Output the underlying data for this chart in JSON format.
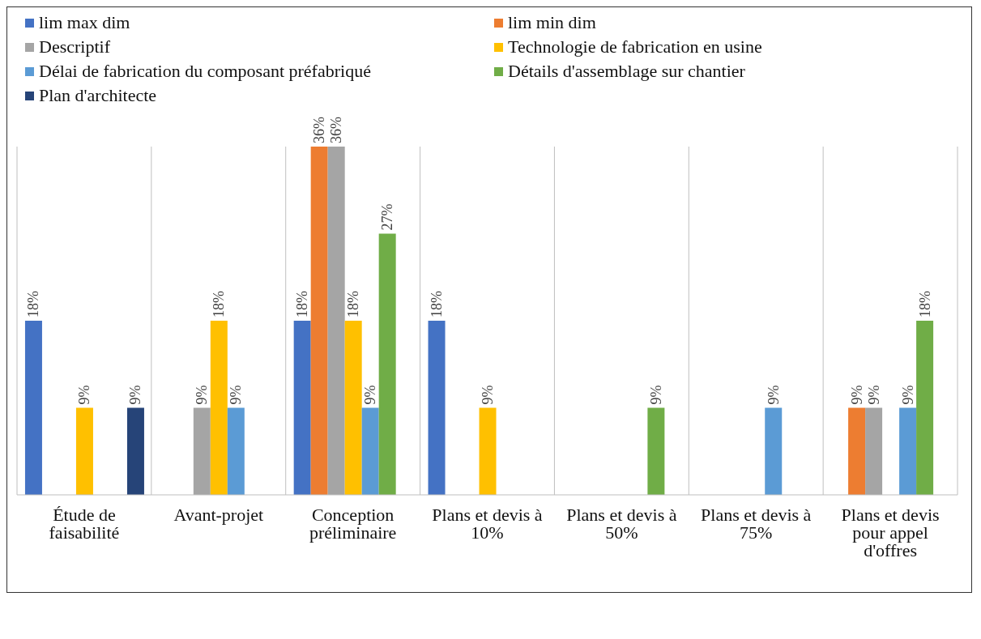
{
  "chart_data": {
    "type": "bar",
    "categories": [
      "Étude de faisabilité",
      "Avant-projet",
      "Conception préliminaire",
      "Plans et devis à 10%",
      "Plans et devis à 50%",
      "Plans et devis à 75%",
      "Plans et devis pour appel d'offres"
    ],
    "series": [
      {
        "name": "lim max dim",
        "color": "#4472c4",
        "values": [
          18,
          null,
          18,
          18,
          null,
          null,
          null
        ],
        "value_labels": [
          "18%",
          null,
          "18%",
          "18%",
          null,
          null,
          null
        ]
      },
      {
        "name": "lim min dim",
        "color": "#ed7d31",
        "values": [
          null,
          null,
          36,
          null,
          null,
          null,
          9
        ],
        "value_labels": [
          null,
          null,
          "36%",
          null,
          null,
          null,
          "9%"
        ]
      },
      {
        "name": "Descriptif",
        "color": "#a5a5a5",
        "values": [
          null,
          9,
          36,
          null,
          null,
          null,
          9
        ],
        "value_labels": [
          null,
          "9%",
          "36%",
          null,
          null,
          null,
          "9%"
        ]
      },
      {
        "name": "Technologie de fabrication en usine",
        "color": "#ffc000",
        "values": [
          9,
          18,
          18,
          9,
          null,
          null,
          null
        ],
        "value_labels": [
          "9%",
          "18%",
          "18%",
          "9%",
          null,
          null,
          null
        ]
      },
      {
        "name": "Délai de fabrication du composant préfabriqué",
        "color": "#5b9bd5",
        "values": [
          null,
          9,
          9,
          null,
          null,
          9,
          9
        ],
        "value_labels": [
          null,
          "9%",
          "9%",
          null,
          null,
          "9%",
          "9%"
        ]
      },
      {
        "name": "Détails d'assemblage sur chantier",
        "color": "#70ad47",
        "values": [
          null,
          null,
          27,
          null,
          9,
          null,
          18
        ],
        "value_labels": [
          null,
          null,
          "27%",
          null,
          "9%",
          null,
          "18%"
        ]
      },
      {
        "name": "Plan d'architecte",
        "color": "#264478",
        "values": [
          9,
          null,
          null,
          null,
          null,
          null,
          null
        ],
        "value_labels": [
          "9%",
          null,
          null,
          null,
          null,
          null,
          null
        ]
      }
    ],
    "ylim": [
      0,
      36
    ],
    "tick_labels": "x",
    "grid": "x",
    "legend": "top"
  }
}
